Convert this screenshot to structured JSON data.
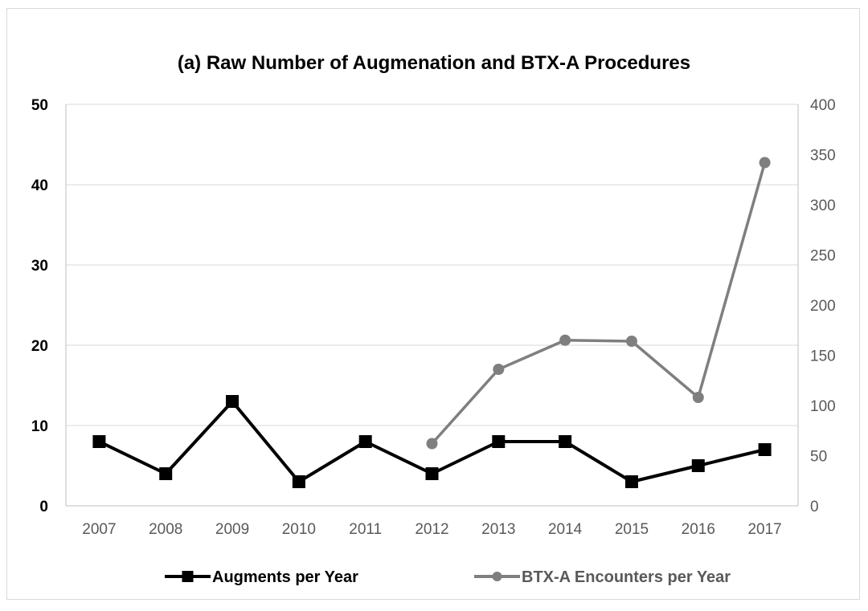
{
  "chart_data": {
    "type": "line",
    "title": "(a) Raw Number of Augmenation and BTX-A Procedures",
    "categories": [
      "2007",
      "2008",
      "2009",
      "2010",
      "2011",
      "2012",
      "2013",
      "2014",
      "2015",
      "2016",
      "2017"
    ],
    "y_left": {
      "ylim": [
        0,
        50
      ],
      "ticks": [
        0,
        10,
        20,
        30,
        40,
        50
      ]
    },
    "y_right": {
      "ylim": [
        0,
        400
      ],
      "ticks": [
        0,
        50,
        100,
        150,
        200,
        250,
        300,
        350,
        400
      ]
    },
    "grid": true,
    "legend_position": "bottom",
    "series": [
      {
        "name": "Augments per Year",
        "axis": "left",
        "marker": "square",
        "color": "#000000",
        "values": [
          8,
          4,
          13,
          3,
          8,
          4,
          8,
          8,
          3,
          5,
          7
        ]
      },
      {
        "name": "BTX-A Encounters per Year",
        "axis": "right",
        "marker": "circle",
        "color": "#7f7f7f",
        "values": [
          null,
          null,
          null,
          null,
          null,
          62,
          136,
          165,
          164,
          108,
          342
        ]
      }
    ]
  }
}
